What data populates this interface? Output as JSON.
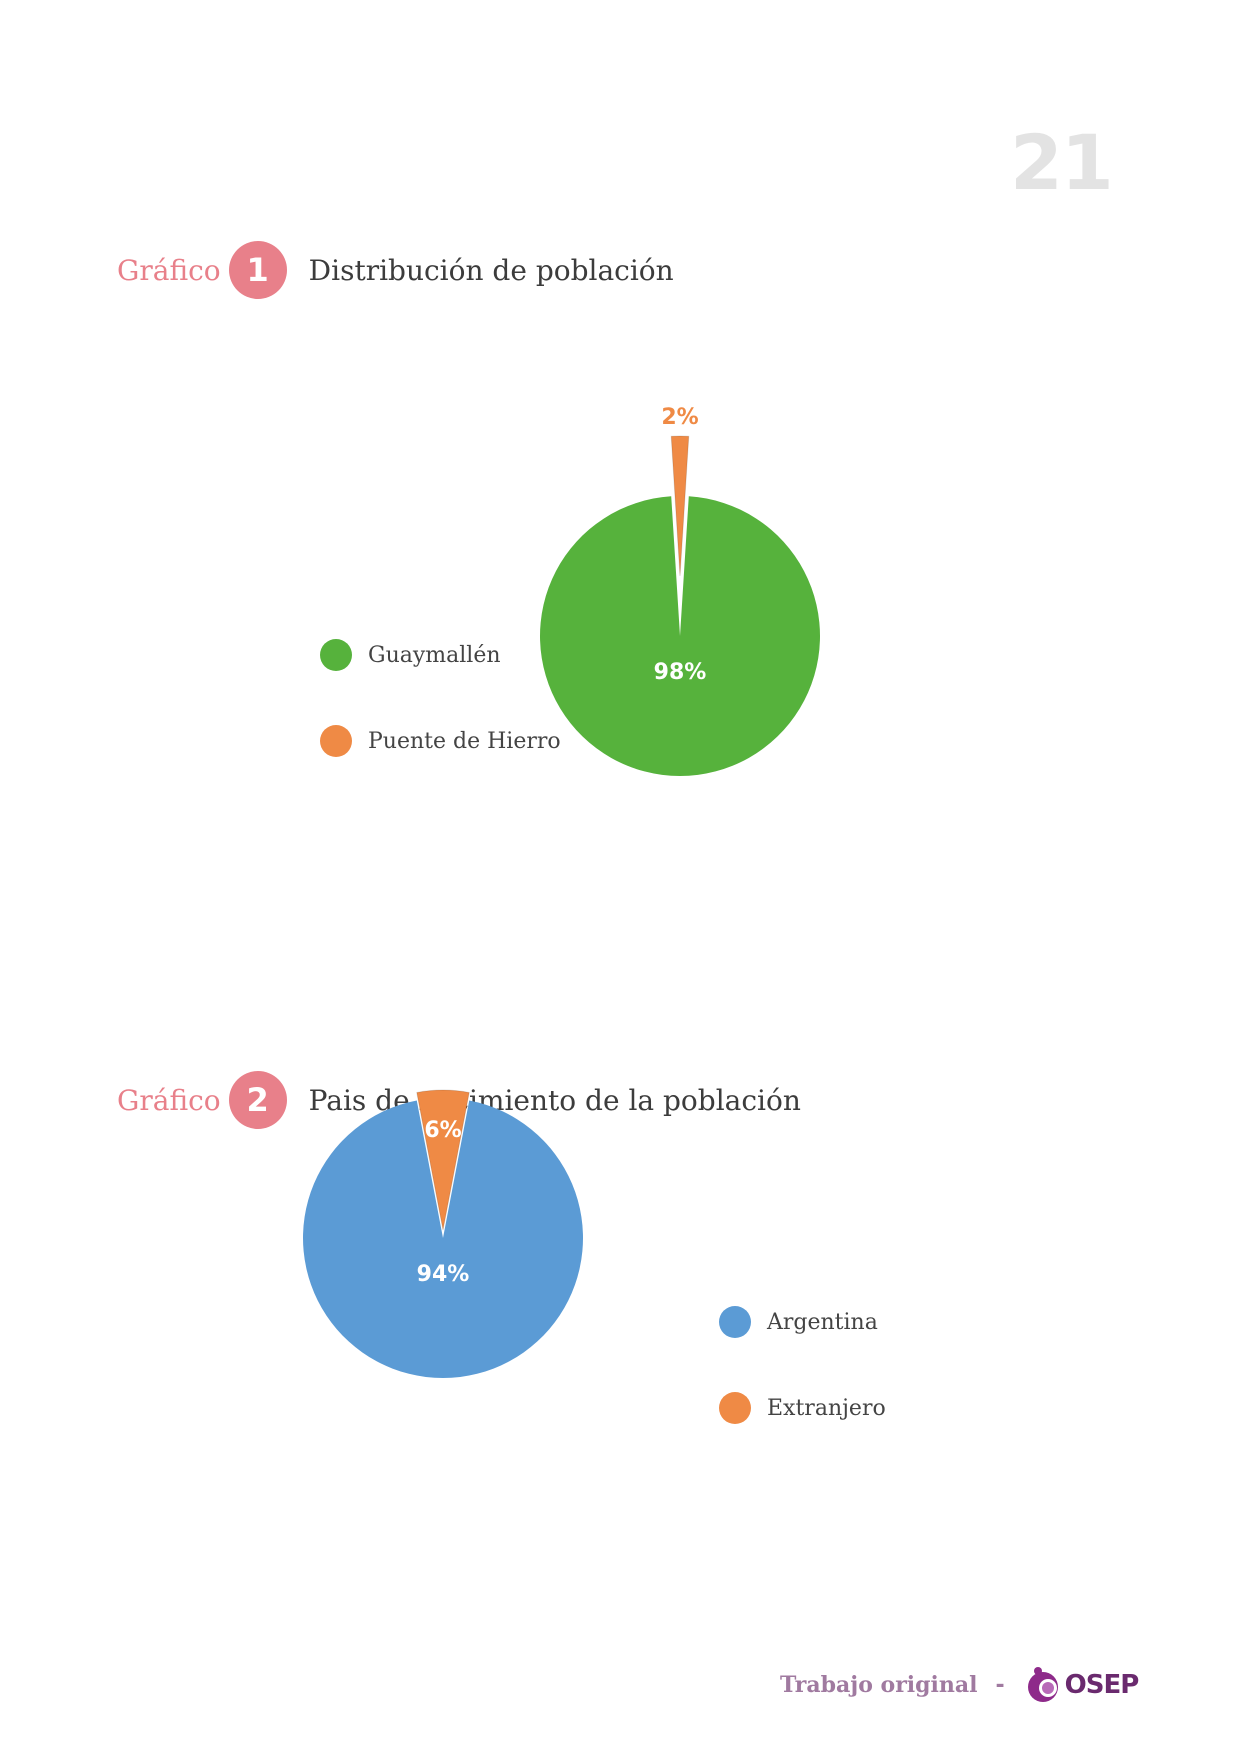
{
  "page": {
    "number": "21"
  },
  "colors": {
    "accent": "#e8808a",
    "green": "#56b23c",
    "orange": "#ef8a45",
    "blue": "#5b9bd5",
    "footer": "#a07aa0",
    "logo": "#6a2a6e"
  },
  "chart_data": [
    {
      "type": "pie",
      "heading_prefix": "Gráfico",
      "heading_number": "1",
      "title": "Distribución de población",
      "legend_position": "left",
      "slices": [
        {
          "label": "Guaymallén",
          "value": 98,
          "display": "98%",
          "color": "#56b23c"
        },
        {
          "label": "Puente de Hierro",
          "value": 2,
          "display": "2%",
          "color": "#ef8a45",
          "exploded": true
        }
      ]
    },
    {
      "type": "pie",
      "heading_prefix": "Gráfico",
      "heading_number": "2",
      "title": "Pais de nacimiento de la población",
      "legend_position": "right",
      "slices": [
        {
          "label": "Argentina",
          "value": 94,
          "display": "94%",
          "color": "#5b9bd5"
        },
        {
          "label": "Extranjero",
          "value": 6,
          "display": "6%",
          "color": "#ef8a45",
          "exploded": true
        }
      ]
    }
  ],
  "footer": {
    "text": "Trabajo original",
    "separator": "-",
    "logo_text": "OSEP"
  }
}
